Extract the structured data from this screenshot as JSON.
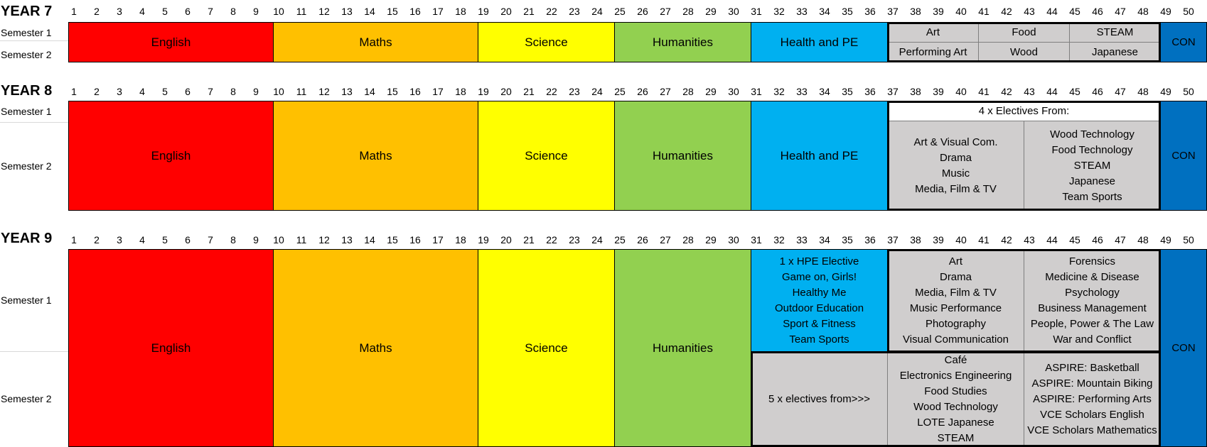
{
  "colors": {
    "english": "#ff0000",
    "maths": "#ffc000",
    "science": "#ffff00",
    "humanities": "#92d050",
    "hpe": "#00b0f0",
    "elective": "#d0cece",
    "con": "#0070c0"
  },
  "periods": [
    "1",
    "2",
    "3",
    "4",
    "5",
    "6",
    "7",
    "8",
    "9",
    "10",
    "11",
    "12",
    "13",
    "14",
    "15",
    "16",
    "17",
    "18",
    "19",
    "20",
    "21",
    "22",
    "23",
    "24",
    "25",
    "26",
    "27",
    "28",
    "29",
    "30",
    "31",
    "32",
    "33",
    "34",
    "35",
    "36",
    "37",
    "38",
    "39",
    "40",
    "41",
    "42",
    "43",
    "44",
    "45",
    "46",
    "47",
    "48",
    "49",
    "50"
  ],
  "year7": {
    "title": "YEAR 7",
    "sem1": "Semester 1",
    "sem2": "Semester 2",
    "english": "English",
    "maths": "Maths",
    "science": "Science",
    "humanities": "Humanities",
    "hpe": "Health and PE",
    "con": "CON",
    "electives": {
      "art": "Art",
      "food": "Food",
      "steam": "STEAM",
      "performing_art": "Performing Art",
      "wood": "Wood",
      "japanese": "Japanese"
    }
  },
  "year8": {
    "title": "YEAR 8",
    "sem1": "Semester 1",
    "sem2": "Semester 2",
    "english": "English",
    "maths": "Maths",
    "science": "Science",
    "humanities": "Humanities",
    "hpe": "Health and PE",
    "con": "CON",
    "electives_header": "4 x Electives From:",
    "electives_col1": "Art & Visual Com.\nDrama\nMusic\nMedia, Film & TV",
    "electives_col2": "Wood Technology\nFood Technology\nSTEAM\nJapanese\nTeam Sports"
  },
  "year9": {
    "title": "YEAR 9",
    "sem1": "Semester 1",
    "sem2": "Semester 2",
    "english": "English",
    "maths": "Maths",
    "science": "Science",
    "humanities": "Humanities",
    "con": "CON",
    "hpe_electives": "1 x HPE Elective\nGame on, Girls!\nHealthy Me\nOutdoor Education\nSport & Fitness\nTeam Sports",
    "s1_col1": "Art\nDrama\nMedia, Film & TV\nMusic Performance\nPhotography\nVisual Communication",
    "s1_col2": "Forensics\nMedicine & Disease\nPsychology\nBusiness Management\nPeople, Power & The Law\nWar and Conflict",
    "s2_intro": "5 x electives from>>>",
    "s2_col1": "Café\nElectronics Engineering\nFood Studies\nWood Technology\nLOTE  Japanese\nSTEAM",
    "s2_col2": "ASPIRE: Basketball\nASPIRE: Mountain Biking\nASPIRE: Performing Arts\nVCE Scholars English\nVCE Scholars Mathematics"
  }
}
